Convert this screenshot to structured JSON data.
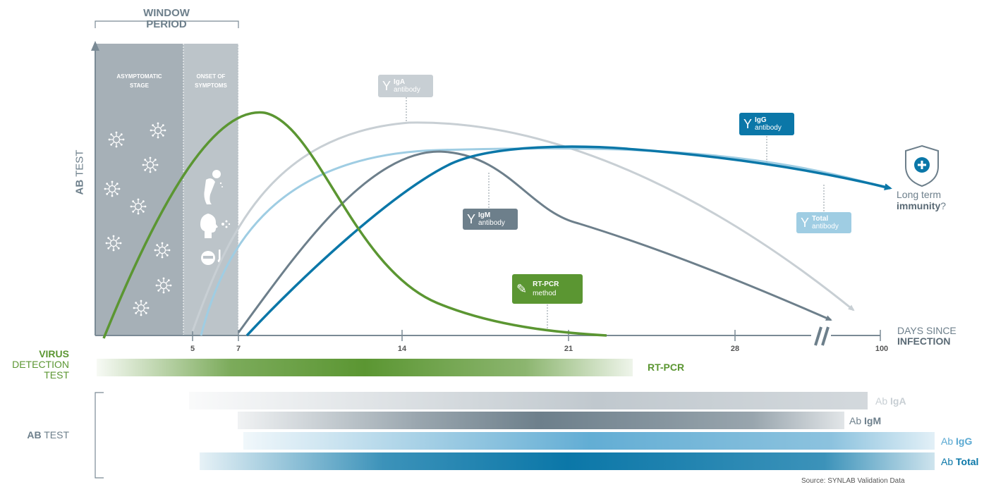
{
  "window_period": {
    "line1": "WINDOW",
    "line2": "PERIOD"
  },
  "stages": {
    "asymptomatic": {
      "line1": "ASYMPTOMATIC",
      "line2": "STAGE"
    },
    "onset": {
      "line1": "ONSET OF",
      "line2": "SYMPTOMS"
    }
  },
  "y_axis": {
    "bold": "AB",
    "rest": " TEST"
  },
  "x_axis": {
    "ticks": [
      "5",
      "7",
      "14",
      "21",
      "28",
      "100"
    ],
    "label_line1": "DAYS SINCE",
    "label_line2": "INFECTION"
  },
  "tags": {
    "iga": {
      "name": "IgA",
      "sub": "antibody"
    },
    "igm": {
      "name": "IgM",
      "sub": "antibody"
    },
    "igg": {
      "name": "IgG",
      "sub": "antibody"
    },
    "total": {
      "name": "Total",
      "sub": "antibody"
    },
    "rtpcr": {
      "name": "RT-PCR",
      "sub": "method"
    }
  },
  "immunity": {
    "line1": "Long term",
    "bold": "immunity",
    "end": "?"
  },
  "virus_test": {
    "line1": "VIRUS",
    "line2": "DETECTION",
    "line3": "TEST",
    "bar_label": "RT-PCR"
  },
  "ab_test": {
    "bold": "AB",
    "rest": " TEST"
  },
  "ab_bars": [
    {
      "prefix": "Ab ",
      "name": "IgA"
    },
    {
      "prefix": "Ab ",
      "name": "IgM"
    },
    {
      "prefix": "Ab ",
      "name": "IgG"
    },
    {
      "prefix": "Ab ",
      "name": "Total"
    }
  ],
  "source": "Source: SYNLAB Validation Data",
  "colors": {
    "rtpcr": "#5b9632",
    "iga": "#c8cfd4",
    "igm": "#6d7f8b",
    "igg": "#0b77a8",
    "total": "#9fcde3",
    "window": "#a6b0b7",
    "axis": "#7a8a95"
  }
}
